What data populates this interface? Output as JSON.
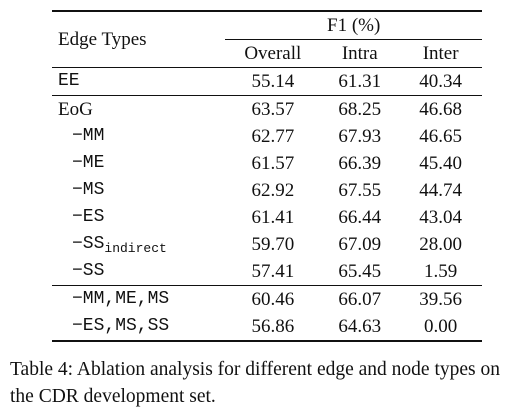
{
  "table": {
    "header": {
      "edge_types": "Edge Types",
      "f1": "F1 (%)",
      "overall": "Overall",
      "intra": "Intra",
      "inter": "Inter"
    },
    "rows": [
      {
        "label": "EE",
        "overall": "55.14",
        "intra": "61.31",
        "inter": "40.34"
      },
      {
        "label": "EoG",
        "overall": "63.57",
        "intra": "68.25",
        "inter": "46.68"
      },
      {
        "label": "−MM",
        "overall": "62.77",
        "intra": "67.93",
        "inter": "46.65"
      },
      {
        "label": "−ME",
        "overall": "61.57",
        "intra": "66.39",
        "inter": "45.40"
      },
      {
        "label": "−MS",
        "overall": "62.92",
        "intra": "67.55",
        "inter": "44.74"
      },
      {
        "label": "−ES",
        "overall": "61.41",
        "intra": "66.44",
        "inter": "43.04"
      },
      {
        "label": "−SS",
        "sub": "indirect",
        "overall": "59.70",
        "intra": "67.09",
        "inter": "28.00"
      },
      {
        "label": "−SS",
        "overall": "57.41",
        "intra": "65.45",
        "inter": "1.59"
      },
      {
        "label": "−MM,ME,MS",
        "overall": "60.46",
        "intra": "66.07",
        "inter": "39.56"
      },
      {
        "label": "−ES,MS,SS",
        "overall": "56.86",
        "intra": "64.63",
        "inter": "0.00"
      }
    ]
  },
  "caption": "Table 4: Ablation analysis for different edge and node types on the CDR development set."
}
